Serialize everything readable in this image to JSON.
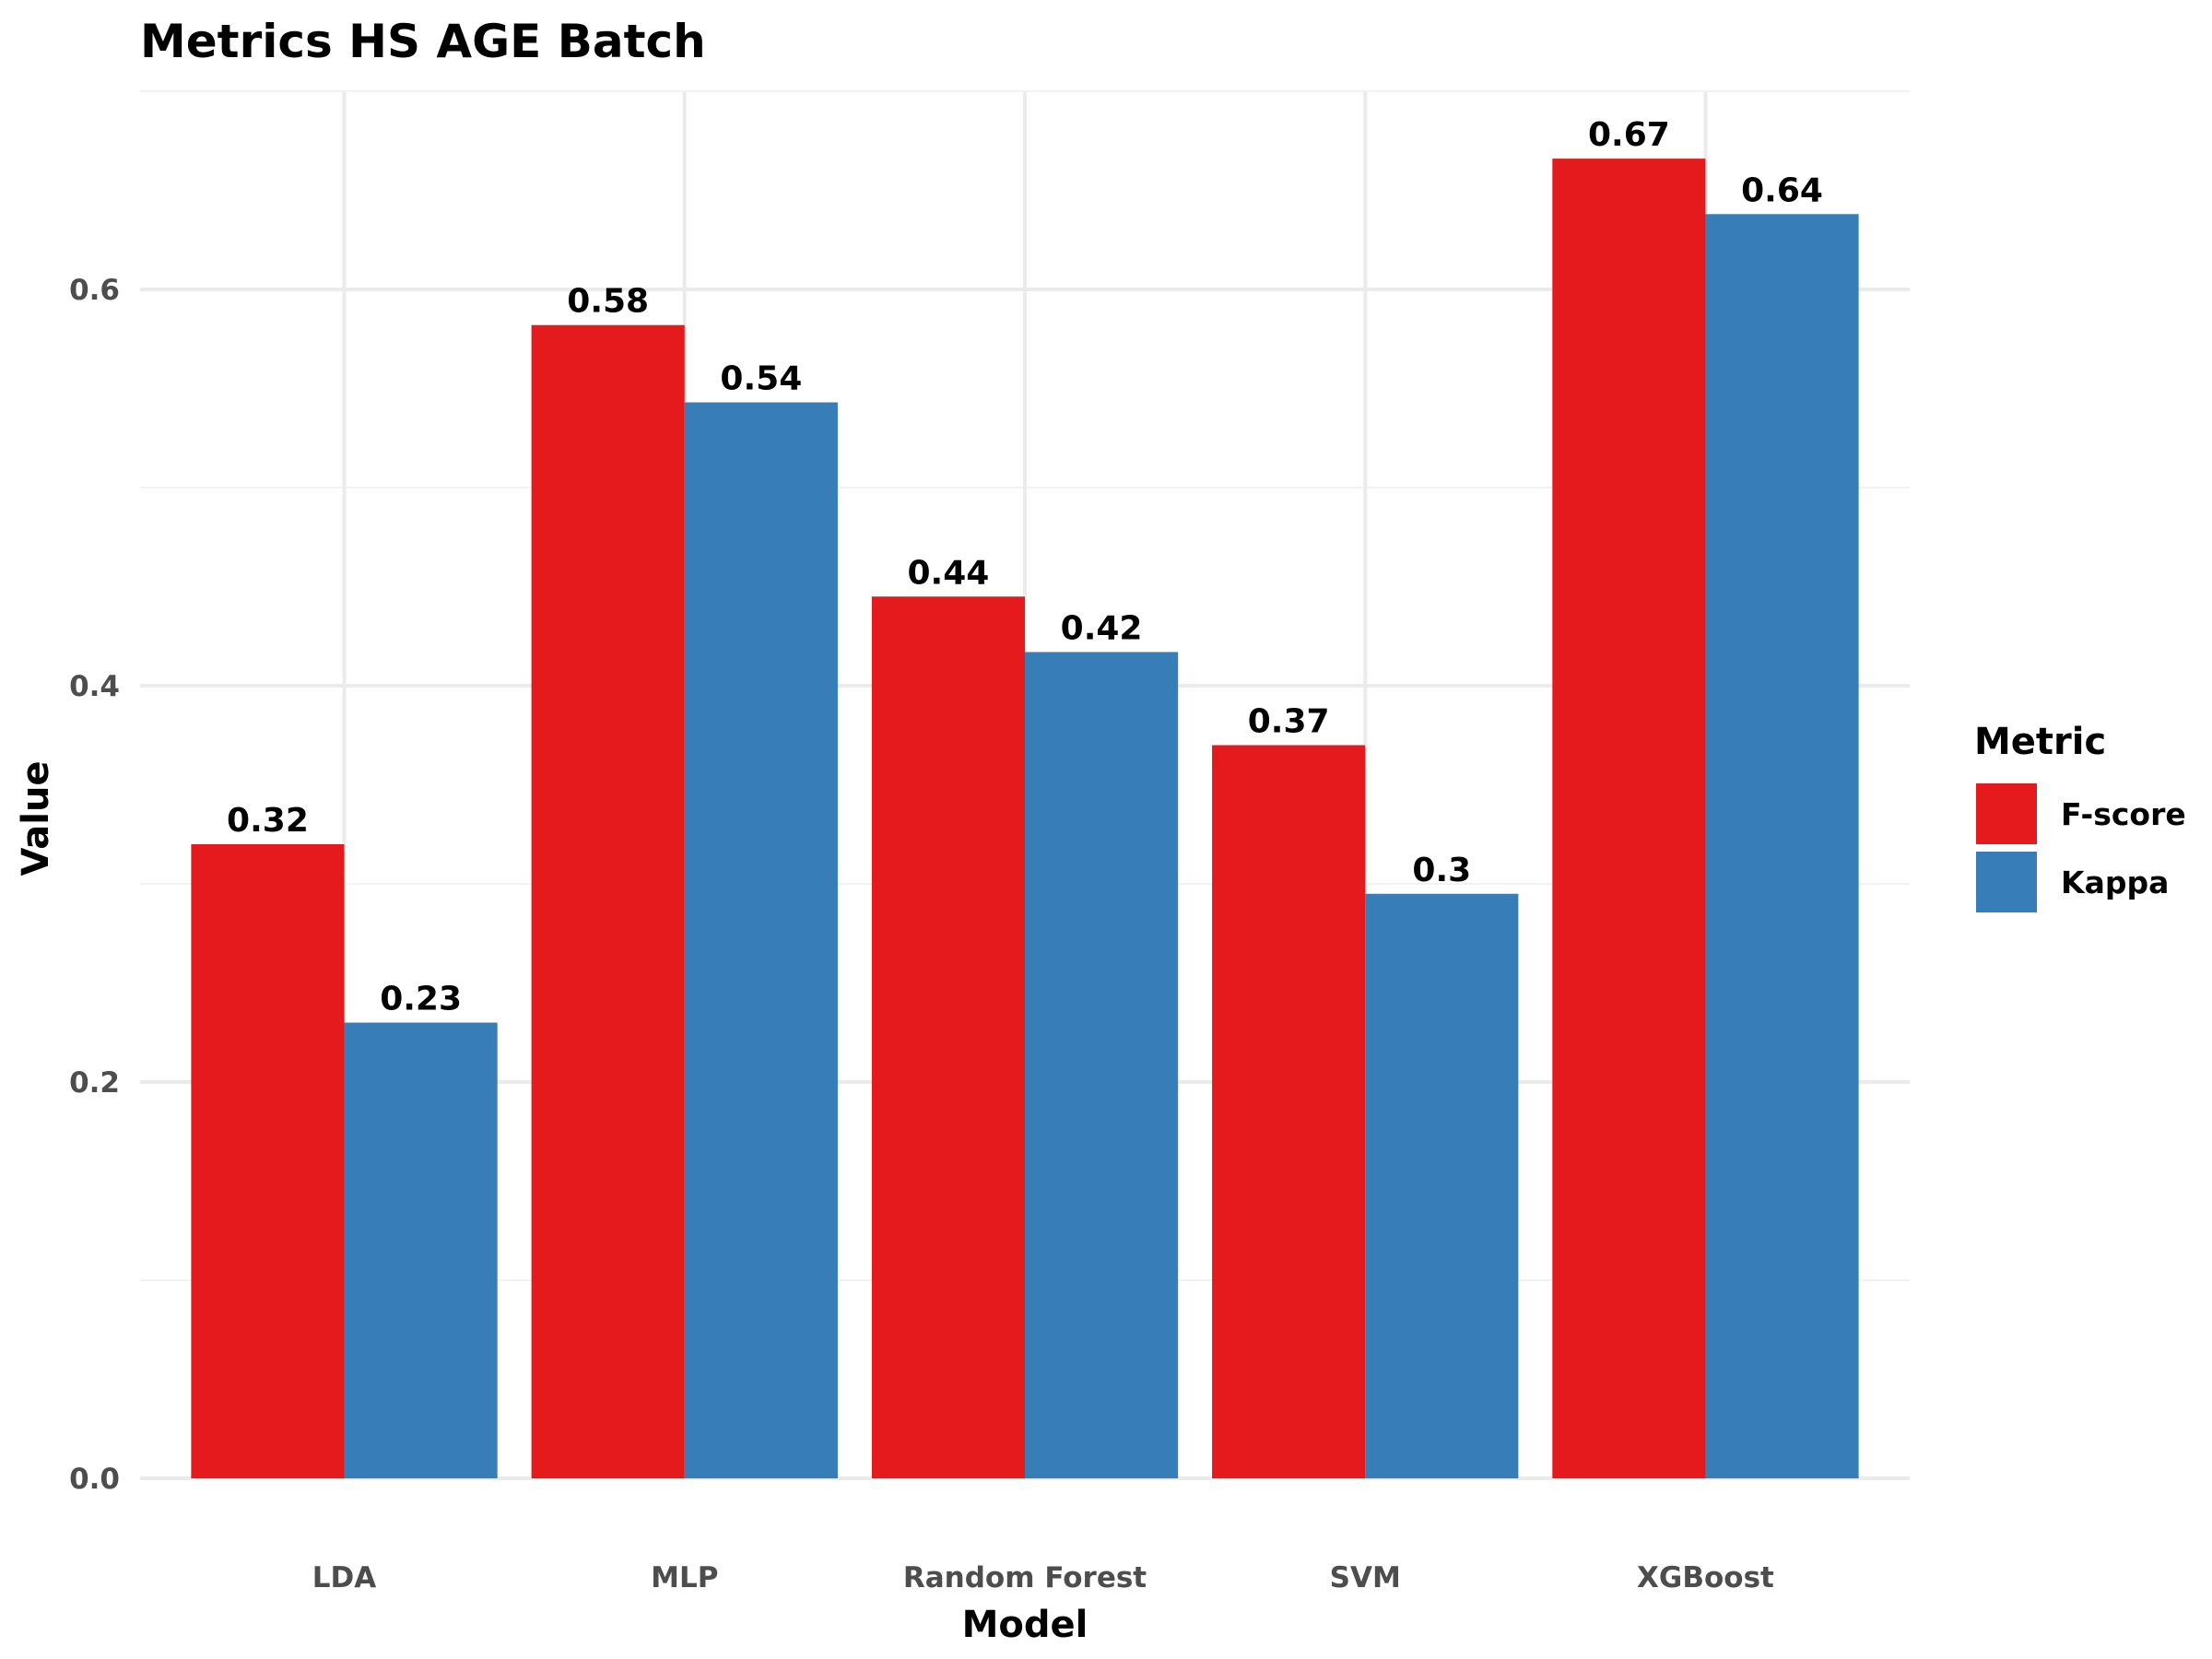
{
  "chart_data": {
    "type": "bar",
    "title": "Metrics HS AGE Batch",
    "xlabel": "Model",
    "ylabel": "Value",
    "categories": [
      "LDA",
      "MLP",
      "Random Forest",
      "SVM",
      "XGBoost"
    ],
    "series": [
      {
        "name": "F-score",
        "color": "#E41A1C",
        "values": [
          0.32,
          0.582,
          0.445,
          0.37,
          0.666
        ],
        "labels": [
          "0.32",
          "0.58",
          "0.44",
          "0.37",
          "0.67"
        ]
      },
      {
        "name": "Kappa",
        "color": "#377EB8",
        "values": [
          0.23,
          0.543,
          0.417,
          0.295,
          0.638
        ],
        "labels": [
          "0.23",
          "0.54",
          "0.42",
          "0.3",
          "0.64"
        ]
      }
    ],
    "ylim": [
      0,
      0.7
    ],
    "yticks": [
      0.0,
      0.2,
      0.4,
      0.6
    ],
    "ytick_labels": [
      "0.0",
      "0.2",
      "0.4",
      "0.6"
    ],
    "grid": true,
    "legend": {
      "title": "Metric",
      "position": "right"
    }
  }
}
